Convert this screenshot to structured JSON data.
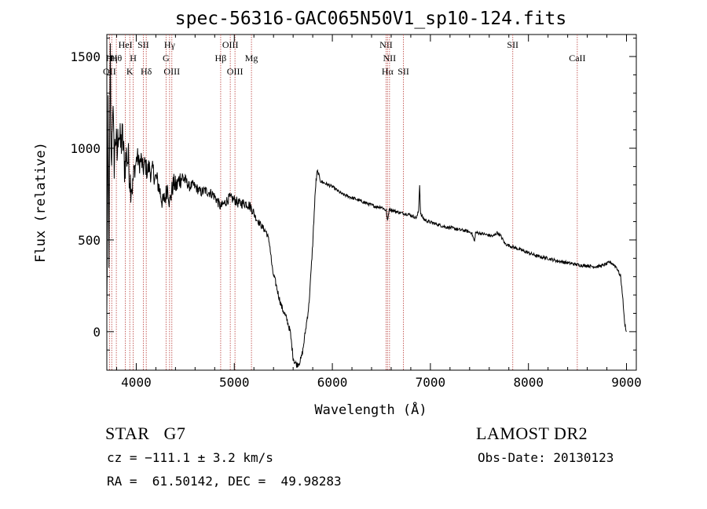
{
  "chart_data": {
    "type": "line",
    "title": "spec-56316-GAC065N50V1_sp10-124.fits",
    "xlabel": "Wavelength (Å)",
    "ylabel": "Flux (relative)",
    "xlim": [
      3700,
      9100
    ],
    "ylim": [
      -210,
      1620
    ],
    "x_ticks": [
      4000,
      5000,
      6000,
      7000,
      8000,
      9000
    ],
    "y_ticks": [
      0,
      500,
      1000,
      1500
    ],
    "grid": false,
    "series": [
      {
        "points": [
          [
            3700,
            80
          ],
          [
            3712,
            1180
          ],
          [
            3722,
            420
          ],
          [
            3735,
            1500
          ],
          [
            3745,
            880
          ],
          [
            3760,
            1250
          ],
          [
            3775,
            920
          ],
          [
            3790,
            1080
          ],
          [
            3805,
            950
          ],
          [
            3820,
            1120
          ],
          [
            3840,
            1010
          ],
          [
            3860,
            1060
          ],
          [
            3880,
            900
          ],
          [
            3900,
            960
          ],
          [
            3920,
            930
          ],
          [
            3940,
            820
          ],
          [
            3960,
            780
          ],
          [
            3975,
            870
          ],
          [
            3990,
            900
          ],
          [
            4010,
            960
          ],
          [
            4030,
            910
          ],
          [
            4050,
            940
          ],
          [
            4070,
            880
          ],
          [
            4090,
            920
          ],
          [
            4110,
            870
          ],
          [
            4130,
            900
          ],
          [
            4150,
            860
          ],
          [
            4170,
            880
          ],
          [
            4190,
            840
          ],
          [
            4210,
            830
          ],
          [
            4240,
            770
          ],
          [
            4270,
            700
          ],
          [
            4300,
            740
          ],
          [
            4320,
            800
          ],
          [
            4340,
            700
          ],
          [
            4360,
            760
          ],
          [
            4380,
            810
          ],
          [
            4410,
            790
          ],
          [
            4440,
            830
          ],
          [
            4470,
            840
          ],
          [
            4500,
            830
          ],
          [
            4540,
            790
          ],
          [
            4580,
            800
          ],
          [
            4620,
            780
          ],
          [
            4660,
            760
          ],
          [
            4700,
            770
          ],
          [
            4740,
            760
          ],
          [
            4780,
            750
          ],
          [
            4820,
            720
          ],
          [
            4860,
            680
          ],
          [
            4900,
            700
          ],
          [
            4950,
            730
          ],
          [
            5000,
            720
          ],
          [
            5040,
            700
          ],
          [
            5080,
            700
          ],
          [
            5120,
            700
          ],
          [
            5150,
            690
          ],
          [
            5180,
            670
          ],
          [
            5220,
            620
          ],
          [
            5260,
            590
          ],
          [
            5300,
            560
          ],
          [
            5330,
            540
          ],
          [
            5360,
            480
          ],
          [
            5390,
            330
          ],
          [
            5420,
            270
          ],
          [
            5450,
            200
          ],
          [
            5480,
            140
          ],
          [
            5510,
            100
          ],
          [
            5540,
            60
          ],
          [
            5570,
            0
          ],
          [
            5600,
            -140
          ],
          [
            5620,
            -170
          ],
          [
            5640,
            -180
          ],
          [
            5660,
            -170
          ],
          [
            5680,
            -150
          ],
          [
            5700,
            -100
          ],
          [
            5720,
            -20
          ],
          [
            5740,
            60
          ],
          [
            5760,
            140
          ],
          [
            5780,
            300
          ],
          [
            5800,
            480
          ],
          [
            5815,
            650
          ],
          [
            5830,
            800
          ],
          [
            5845,
            870
          ],
          [
            5860,
            860
          ],
          [
            5880,
            820
          ],
          [
            5920,
            810
          ],
          [
            5960,
            800
          ],
          [
            6000,
            790
          ],
          [
            6050,
            770
          ],
          [
            6100,
            750
          ],
          [
            6150,
            740
          ],
          [
            6200,
            730
          ],
          [
            6250,
            720
          ],
          [
            6300,
            710
          ],
          [
            6350,
            700
          ],
          [
            6400,
            690
          ],
          [
            6450,
            680
          ],
          [
            6500,
            680
          ],
          [
            6550,
            660
          ],
          [
            6563,
            600
          ],
          [
            6580,
            670
          ],
          [
            6620,
            660
          ],
          [
            6680,
            650
          ],
          [
            6720,
            645
          ],
          [
            6780,
            640
          ],
          [
            6820,
            630
          ],
          [
            6860,
            620
          ],
          [
            6880,
            660
          ],
          [
            6890,
            800
          ],
          [
            6900,
            640
          ],
          [
            6940,
            610
          ],
          [
            6980,
            600
          ],
          [
            7040,
            590
          ],
          [
            7100,
            580
          ],
          [
            7160,
            570
          ],
          [
            7220,
            565
          ],
          [
            7260,
            560
          ],
          [
            7300,
            555
          ],
          [
            7360,
            550
          ],
          [
            7420,
            540
          ],
          [
            7450,
            490
          ],
          [
            7460,
            540
          ],
          [
            7520,
            535
          ],
          [
            7560,
            530
          ],
          [
            7600,
            525
          ],
          [
            7640,
            520
          ],
          [
            7680,
            540
          ],
          [
            7720,
            520
          ],
          [
            7760,
            480
          ],
          [
            7800,
            470
          ],
          [
            7850,
            460
          ],
          [
            7900,
            450
          ],
          [
            7950,
            440
          ],
          [
            8000,
            430
          ],
          [
            8050,
            420
          ],
          [
            8100,
            410
          ],
          [
            8150,
            405
          ],
          [
            8200,
            400
          ],
          [
            8250,
            392
          ],
          [
            8300,
            385
          ],
          [
            8350,
            380
          ],
          [
            8400,
            375
          ],
          [
            8450,
            370
          ],
          [
            8500,
            365
          ],
          [
            8550,
            360
          ],
          [
            8600,
            360
          ],
          [
            8650,
            355
          ],
          [
            8700,
            355
          ],
          [
            8750,
            360
          ],
          [
            8800,
            370
          ],
          [
            8830,
            380
          ],
          [
            8860,
            370
          ],
          [
            8900,
            350
          ],
          [
            8940,
            300
          ],
          [
            8960,
            200
          ],
          [
            8980,
            50
          ],
          [
            9000,
            0
          ]
        ]
      }
    ],
    "line_markers": [
      {
        "x": 3727,
        "label": "OII",
        "row": 3
      },
      {
        "x": 3750,
        "label": "Hη",
        "row": 2
      },
      {
        "x": 3797,
        "label": "Hθ",
        "row": 2
      },
      {
        "x": 3889,
        "label": "HeI",
        "row": 1
      },
      {
        "x": 3934,
        "label": "K",
        "row": 3
      },
      {
        "x": 3969,
        "label": "H",
        "row": 2
      },
      {
        "x": 4072,
        "label": "SII",
        "row": 1
      },
      {
        "x": 4102,
        "label": "Hδ",
        "row": 3
      },
      {
        "x": 4304,
        "label": "G",
        "row": 2
      },
      {
        "x": 4340,
        "label": "Hγ",
        "row": 1
      },
      {
        "x": 4363,
        "label": "OIII",
        "row": 3
      },
      {
        "x": 4861,
        "label": "Hβ",
        "row": 2
      },
      {
        "x": 4959,
        "label": "OIII",
        "row": 1
      },
      {
        "x": 5007,
        "label": "OIII",
        "row": 3
      },
      {
        "x": 5175,
        "label": "Mg",
        "row": 2
      },
      {
        "x": 6548,
        "label": "NII",
        "row": 1
      },
      {
        "x": 6563,
        "label": "Hα",
        "row": 3
      },
      {
        "x": 6583,
        "label": "NII",
        "row": 2
      },
      {
        "x": 6725,
        "label": "SII",
        "row": 3
      },
      {
        "x": 7840,
        "label": "SII",
        "row": 1
      },
      {
        "x": 8498,
        "label": "CaII",
        "row": 2
      }
    ]
  },
  "footer": {
    "class_line": "STAR   G7",
    "survey": "LAMOST DR2",
    "cz_line": "cz = −111.1 ± 3.2 km/s",
    "obs_date": "Obs-Date: 20130123",
    "radec_line": "RA =  61.50142, DEC =  49.98283"
  },
  "colors": {
    "marker_line": "#c0504d",
    "spectrum": "#000000",
    "frame": "#000000"
  }
}
